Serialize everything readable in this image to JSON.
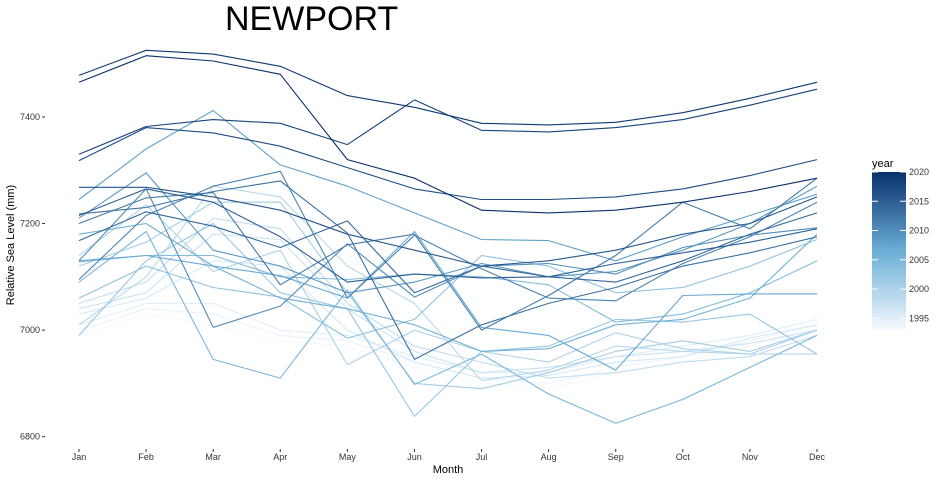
{
  "chart_data": {
    "type": "line",
    "title": "NEWPORT",
    "xlabel": "Month",
    "ylabel": "Relative Sea Level (mm)",
    "categories": [
      "Jan",
      "Feb",
      "Mar",
      "Apr",
      "May",
      "Jun",
      "Jul",
      "Aug",
      "Sep",
      "Oct",
      "Nov",
      "Dec"
    ],
    "yticks": [
      6800,
      7000,
      7200,
      7400
    ],
    "ylim": [
      6790,
      7535
    ],
    "grid": false,
    "legend": {
      "title": "year",
      "position": "right",
      "min": 1993,
      "max": 2020,
      "ticks": [
        1995,
        2000,
        2005,
        2010,
        2015,
        2020
      ],
      "color_low": "#f4f9fe",
      "color_high": "#08306b"
    },
    "series": [
      {
        "year": 2020,
        "values": [
          7465,
          7515,
          7505,
          7480,
          7320,
          7285,
          7225,
          7220,
          7225,
          7240,
          7260,
          7285
        ]
      },
      {
        "year": 2019,
        "values": [
          7478,
          7525,
          7518,
          7495,
          7440,
          7418,
          7388,
          7385,
          7390,
          7408,
          7435,
          7465
        ]
      },
      {
        "year": 2018,
        "values": [
          7330,
          7382,
          7395,
          7388,
          7348,
          7432,
          7375,
          7372,
          7380,
          7395,
          7422,
          7452
        ]
      },
      {
        "year": 2017,
        "values": [
          7318,
          7380,
          7370,
          7345,
          7305,
          7265,
          7245,
          7245,
          7250,
          7265,
          7290,
          7320
        ]
      },
      {
        "year": 2016,
        "values": [
          7268,
          7268,
          7250,
          7225,
          7180,
          7150,
          7120,
          7130,
          7150,
          7180,
          7200,
          7250
        ]
      },
      {
        "year": 2015,
        "values": [
          7215,
          7265,
          7240,
          7175,
          7090,
          7105,
          7098,
          7100,
          7125,
          7145,
          7165,
          7190
        ]
      },
      {
        "year": 2014,
        "values": [
          7168,
          7222,
          7195,
          7155,
          7205,
          7070,
          7120,
          7100,
          7090,
          7130,
          7180,
          7220
        ]
      },
      {
        "year": 2013,
        "values": [
          7218,
          7230,
          7260,
          7280,
          7182,
          6945,
          7010,
          7050,
          7080,
          7120,
          7145,
          7175
        ]
      },
      {
        "year": 2012,
        "values": [
          7200,
          7248,
          7258,
          7085,
          7160,
          7180,
          7000,
          7065,
          7140,
          7240,
          7190,
          7285
        ]
      },
      {
        "year": 2011,
        "values": [
          7095,
          7215,
          7270,
          7298,
          7060,
          7178,
          7115,
          7060,
          7055,
          7125,
          7175,
          7240
        ]
      },
      {
        "year": 2010,
        "values": [
          7130,
          7265,
          7005,
          7045,
          7162,
          7062,
          7120,
          7125,
          7105,
          7155,
          7178,
          7192
        ]
      },
      {
        "year": 2009,
        "values": [
          7210,
          7295,
          7150,
          7120,
          7070,
          7090,
          7125,
          7100,
          7110,
          7150,
          7200,
          7270
        ]
      },
      {
        "year": 2008,
        "values": [
          7245,
          7340,
          7412,
          7310,
          7270,
          7220,
          7170,
          7168,
          7130,
          7175,
          7215,
          7255
        ]
      },
      {
        "year": 2007,
        "values": [
          7130,
          7140,
          7120,
          7102,
          7060,
          7185,
          7005,
          6990,
          6925,
          7065,
          7068,
          7068
        ]
      },
      {
        "year": 2006,
        "values": [
          7180,
          7200,
          7120,
          7060,
          7040,
          7010,
          6960,
          6965,
          7010,
          7020,
          7060,
          7180
        ]
      },
      {
        "year": 2005,
        "values": [
          7090,
          7185,
          6945,
          6910,
          7075,
          6898,
          6955,
          6880,
          6825,
          6870,
          6930,
          6990
        ]
      },
      {
        "year": 2004,
        "values": [
          7128,
          7140,
          7140,
          7100,
          7095,
          7105,
          7100,
          7085,
          7015,
          7030,
          7070,
          7130
        ]
      },
      {
        "year": 2003,
        "values": [
          7060,
          7120,
          7080,
          7062,
          6985,
          7020,
          7140,
          7120,
          7070,
          7080,
          7120,
          7170
        ]
      },
      {
        "year": 2002,
        "values": [
          6990,
          7130,
          7200,
          7070,
          7040,
          6838,
          6960,
          6970,
          7020,
          7015,
          7030,
          6955
        ]
      },
      {
        "year": 2001,
        "values": [
          7120,
          7165,
          7240,
          7240,
          7070,
          6900,
          6890,
          6920,
          6960,
          6980,
          6960,
          7000
        ]
      },
      {
        "year": 2000,
        "values": [
          7140,
          7235,
          7110,
          7150,
          6935,
          7000,
          6960,
          6940,
          6995,
          6965,
          6955,
          7000
        ]
      },
      {
        "year": 1999,
        "values": [
          7010,
          7100,
          7270,
          7250,
          7120,
          7050,
          6905,
          6925,
          6970,
          6960,
          6955,
          6955
        ]
      },
      {
        "year": 1998,
        "values": [
          7050,
          7090,
          7210,
          7190,
          7050,
          6970,
          6940,
          6910,
          6920,
          6940,
          6950,
          6990
        ]
      },
      {
        "year": 1997,
        "values": [
          7040,
          7070,
          7180,
          7170,
          7040,
          6960,
          6920,
          6930,
          6950,
          6960,
          6975,
          7000
        ]
      },
      {
        "year": 1996,
        "values": [
          7030,
          7060,
          7130,
          7120,
          7000,
          6940,
          6910,
          6915,
          6940,
          6950,
          6985,
          7010
        ]
      },
      {
        "year": 1995,
        "values": [
          7010,
          7050,
          7050,
          7000,
          6990,
          6950,
          6920,
          6920,
          6950,
          6970,
          6990,
          7020
        ]
      },
      {
        "year": 1994,
        "values": [
          7000,
          7040,
          7030,
          6990,
          6980,
          6940,
          6910,
          6900,
          6930,
          6950,
          6980,
          7010
        ]
      },
      {
        "year": 1993,
        "values": [
          6990,
          7030,
          7010,
          6980,
          6970,
          6930,
          6900,
          6890,
          6920,
          6940,
          6970,
          7000
        ]
      }
    ]
  }
}
